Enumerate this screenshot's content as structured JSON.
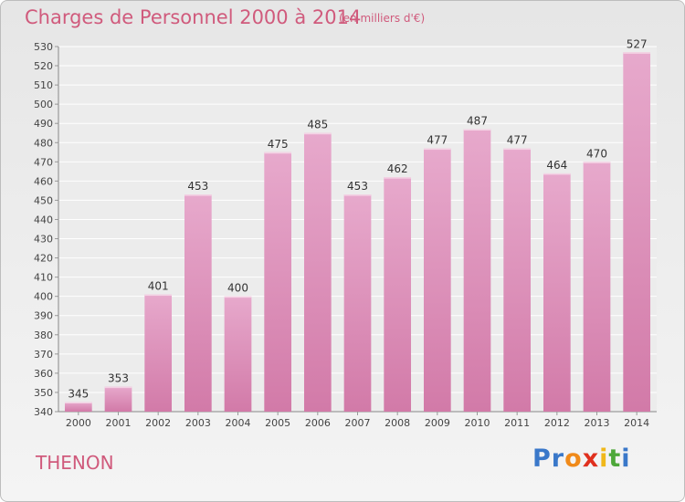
{
  "header": {
    "title": "Charges de Personnel 2000 à 2014",
    "subtitle": "(en milliers d'€)"
  },
  "footer": {
    "city": "THENON",
    "logo_letters": [
      "P",
      "r",
      "o",
      "x",
      "i",
      "t",
      "i"
    ],
    "logo_colors": [
      "#3a78c9",
      "#3a78c9",
      "#f08a1a",
      "#e0301e",
      "#f0b81a",
      "#4ea83a",
      "#3a78c9"
    ]
  },
  "colors": {
    "bar": "#d27aa8",
    "bar_light": "#e7a9cc",
    "text_accent": "#d05a7c"
  },
  "chart_data": {
    "type": "bar",
    "title": "Charges de Personnel 2000 à 2014",
    "categories": [
      "2000",
      "2001",
      "2002",
      "2003",
      "2004",
      "2005",
      "2006",
      "2007",
      "2008",
      "2009",
      "2010",
      "2011",
      "2012",
      "2013",
      "2014"
    ],
    "values": [
      345,
      353,
      401,
      453,
      400,
      475,
      485,
      453,
      462,
      477,
      487,
      477,
      464,
      470,
      527
    ],
    "ylim": [
      340,
      530
    ],
    "ytick_step": 10,
    "grid": true,
    "xlabel": "",
    "ylabel": ""
  }
}
